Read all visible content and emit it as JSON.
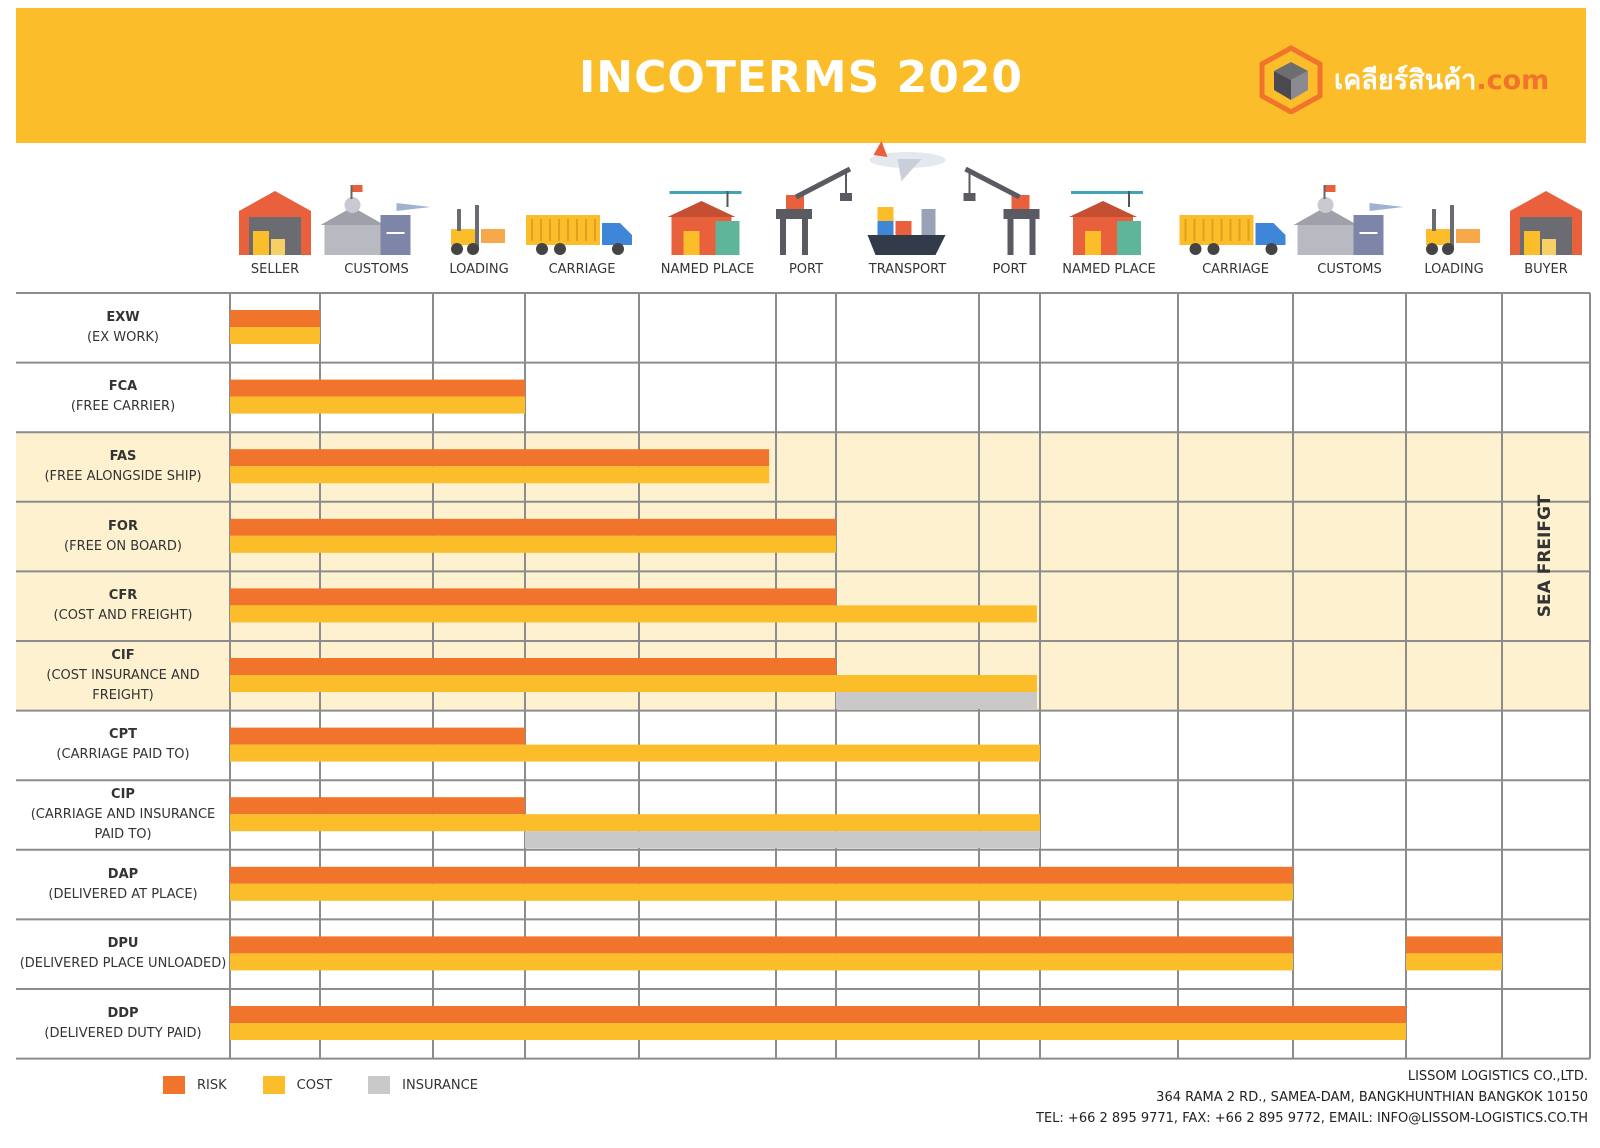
{
  "header": {
    "title": "INCOTERMS 2020",
    "brand": {
      "name": "เคลียร์สินค้า",
      "tld": ".com"
    }
  },
  "colors": {
    "header_bg": "#fbbd29",
    "risk": "#f0742c",
    "cost": "#fbbd29",
    "insurance": "#c9c9c9",
    "sea_band": "#fdf1cf",
    "grid": "#8c8c8c"
  },
  "stages": [
    {
      "label": "SELLER",
      "icon": "warehouse-icon"
    },
    {
      "label": "CUSTOMS",
      "icon": "customs-house-icon"
    },
    {
      "label": "LOADING",
      "icon": "forklift-icon"
    },
    {
      "label": "CARRIAGE",
      "icon": "truck-icon"
    },
    {
      "label": "NAMED PLACE",
      "icon": "depot-icon"
    },
    {
      "label": "PORT",
      "icon": "port-crane-icon"
    },
    {
      "label": "TRANSPORT",
      "icon": "ship-plane-icon"
    },
    {
      "label": "PORT",
      "icon": "port-crane-icon"
    },
    {
      "label": "NAMED PLACE",
      "icon": "depot-icon"
    },
    {
      "label": "CARRIAGE",
      "icon": "truck-icon"
    },
    {
      "label": "CUSTOMS",
      "icon": "customs-house-icon"
    },
    {
      "label": "LOADING",
      "icon": "forklift-icon"
    },
    {
      "label": "BUYER",
      "icon": "warehouse-icon"
    }
  ],
  "terms": [
    {
      "code": "EXW",
      "name": "(EX WORK)",
      "risk": 1,
      "cost": 1,
      "insurance": null,
      "sea": false
    },
    {
      "code": "FCA",
      "name": "(FREE CARRIER)",
      "risk": 3,
      "cost": 3,
      "insurance": null,
      "sea": false
    },
    {
      "code": "FAS",
      "name": "(FREE ALONGSIDE SHIP)",
      "risk": 4.95,
      "cost": 4.95,
      "insurance": null,
      "sea": true
    },
    {
      "code": "FOR",
      "name": "(FREE ON BOARD)",
      "risk": 6,
      "cost": 6,
      "insurance": null,
      "sea": true
    },
    {
      "code": "CFR",
      "name": "(COST AND FREIGHT)",
      "risk": 6,
      "cost": 7.95,
      "insurance": null,
      "sea": true
    },
    {
      "code": "CIF",
      "name": "(COST INSURANCE AND FREIGHT)",
      "risk": 6,
      "cost": 7.95,
      "insurance": [
        6,
        7.95
      ],
      "sea": true
    },
    {
      "code": "CPT",
      "name": "(CARRIAGE PAID TO)",
      "risk": 3,
      "cost": 8,
      "insurance": null,
      "sea": false
    },
    {
      "code": "CIP",
      "name": "(CARRIAGE AND INSURANCE PAID TO)",
      "risk": 3,
      "cost": 8,
      "insurance": [
        3,
        8
      ],
      "sea": false
    },
    {
      "code": "DAP",
      "name": "(DELIVERED AT PLACE)",
      "risk": 10,
      "cost": 10,
      "insurance": null,
      "sea": false
    },
    {
      "code": "DPU",
      "name": "(DELIVERED PLACE UNLOADED)",
      "risk": 10,
      "cost": 10,
      "insurance": null,
      "extra": [
        11,
        12
      ],
      "sea": false
    },
    {
      "code": "DDP",
      "name": "(DELIVERED DUTY PAID)",
      "risk": 11,
      "cost": 11,
      "insurance": null,
      "sea": false
    }
  ],
  "sea_label": "SEA FREIFGT",
  "legend": [
    {
      "label": "RISK",
      "color": "#f0742c"
    },
    {
      "label": "COST",
      "color": "#fbbd29"
    },
    {
      "label": "INSURANCE",
      "color": "#c9c9c9"
    }
  ],
  "footer": {
    "company": "LISSOM LOGISTICS CO.,LTD.",
    "address": "364 RAMA 2 RD., SAMEA-DAM, BANGKHUNTHIAN BANGKOK 10150",
    "contact": "TEL: +66 2 895 9771, FAX: +66 2 895 9772, EMAIL: INFO@LISSOM-LOGISTICS.CO.TH"
  }
}
